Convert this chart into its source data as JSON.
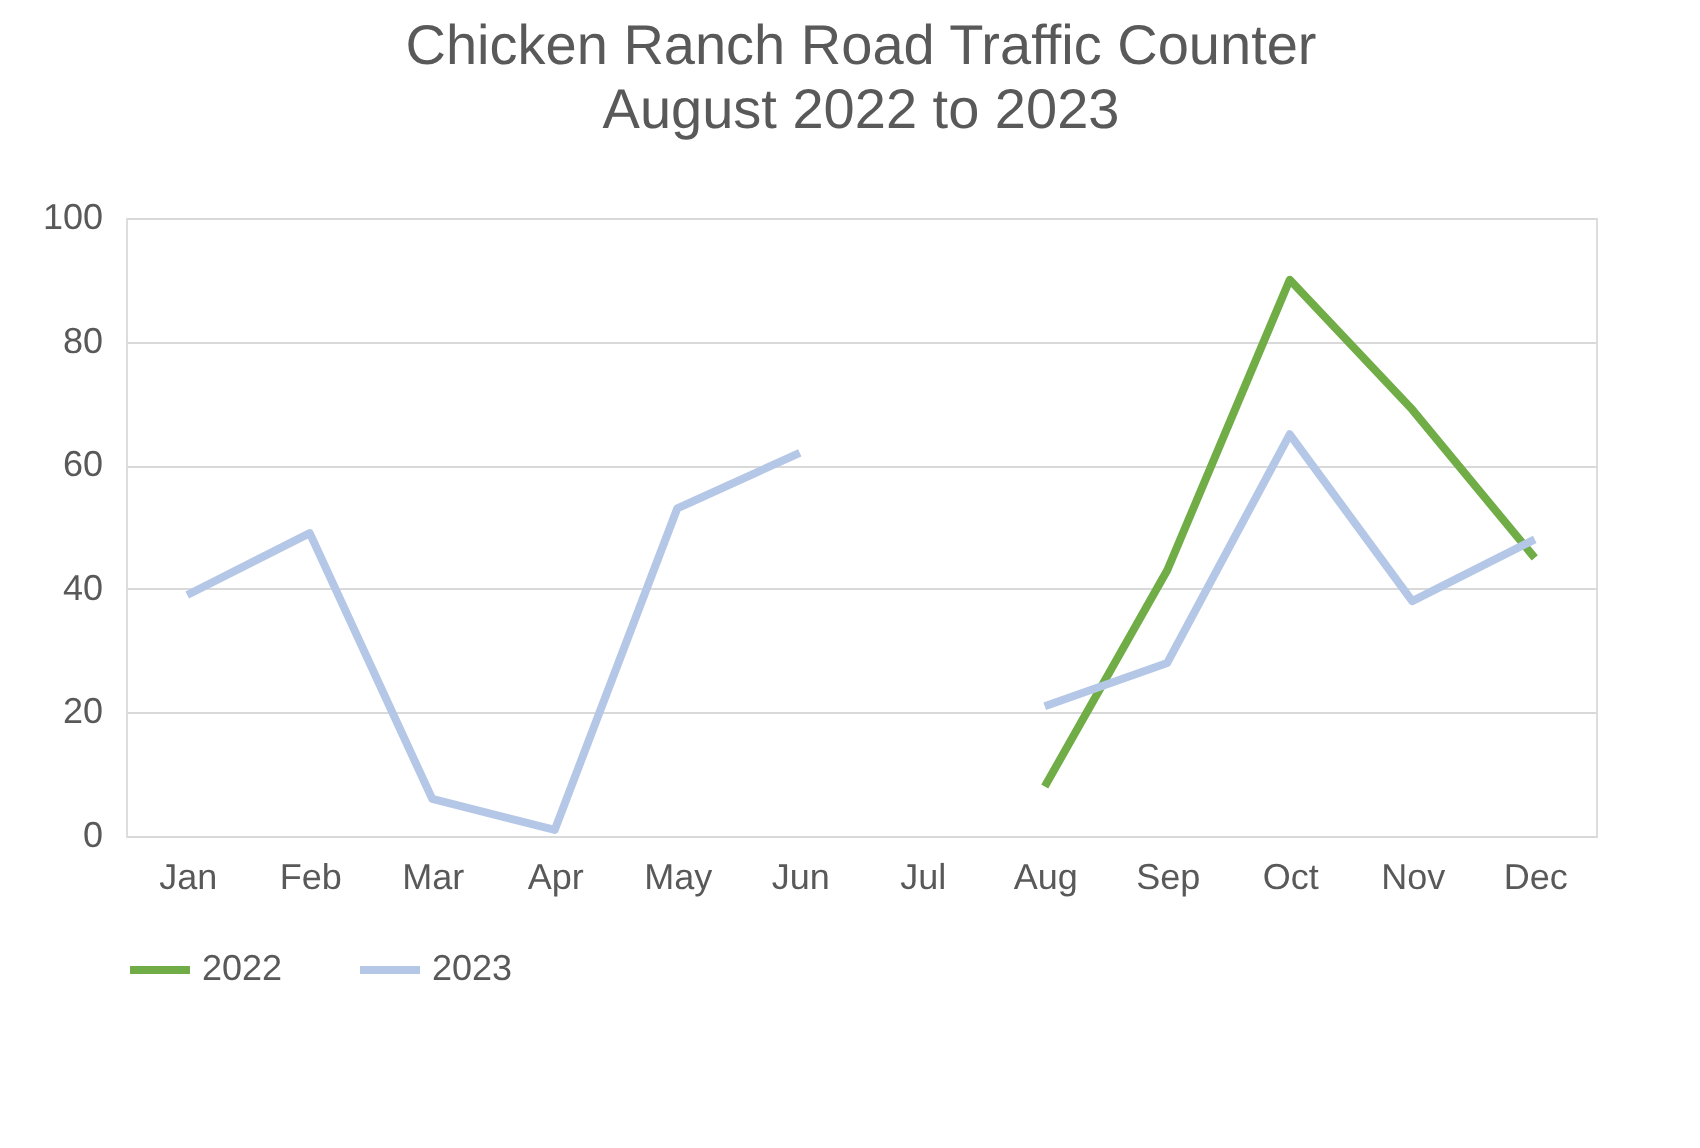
{
  "chart_data": {
    "type": "line",
    "title": "Chicken Ranch Road Traffic Counter",
    "subtitle": "August 2022 to 2023",
    "categories": [
      "Jan",
      "Feb",
      "Mar",
      "Apr",
      "May",
      "Jun",
      "Jul",
      "Aug",
      "Sep",
      "Oct",
      "Nov",
      "Dec"
    ],
    "series": [
      {
        "name": "2022",
        "color": "#70ad47",
        "values": [
          null,
          null,
          null,
          null,
          null,
          null,
          null,
          8,
          43,
          90,
          69,
          45
        ]
      },
      {
        "name": "2023",
        "color": "#b4c7e7",
        "values": [
          39,
          49,
          6,
          1,
          53,
          62,
          null,
          21,
          28,
          65,
          38,
          48
        ]
      }
    ],
    "ylim": [
      0,
      100
    ],
    "yticks": [
      0,
      20,
      40,
      60,
      80,
      100
    ],
    "grid": "y",
    "legend": "bottom",
    "marker": "none",
    "line_style": "solid"
  }
}
